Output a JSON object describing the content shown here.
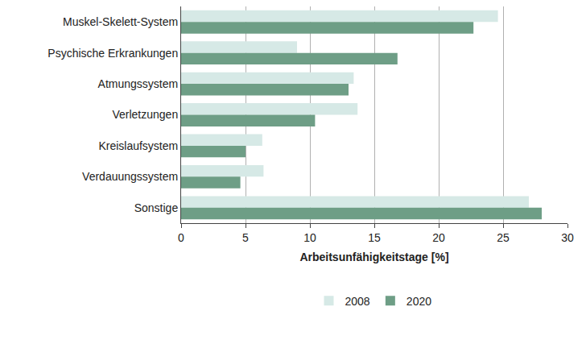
{
  "chart_data": {
    "type": "bar",
    "orientation": "horizontal",
    "categories": [
      "Muskel-Skelett-System",
      "Psychische Erkrankungen",
      "Atmungssystem",
      "Verletzungen",
      "Kreislaufsystem",
      "Verdauungssystem",
      "Sonstige"
    ],
    "series": [
      {
        "name": "2008",
        "color": "#d6e9e6",
        "values": [
          24.6,
          9.0,
          13.4,
          13.7,
          6.3,
          6.4,
          27.0
        ]
      },
      {
        "name": "2020",
        "color": "#6e9e86",
        "values": [
          22.7,
          16.8,
          13.0,
          10.4,
          5.0,
          4.6,
          28.0
        ]
      }
    ],
    "x_label": "Arbeitsunfähigkeitstage [%]",
    "xlim": [
      0,
      30
    ],
    "xticks": [
      0,
      5,
      10,
      15,
      20,
      25,
      30
    ],
    "grid": true,
    "legend": "bottom"
  }
}
